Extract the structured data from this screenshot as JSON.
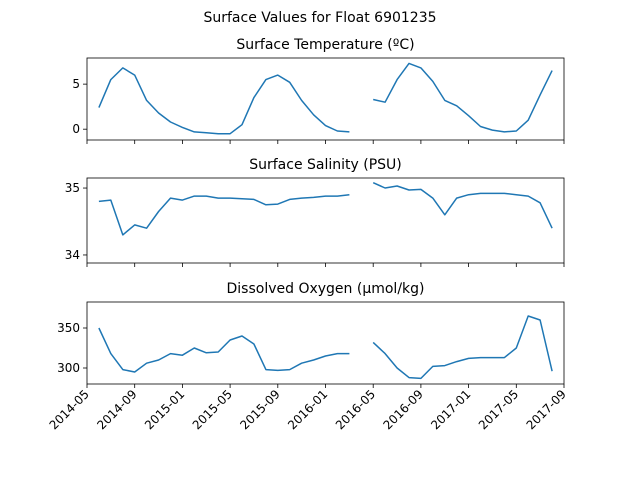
{
  "title": "Surface Values for Float 6901235",
  "chart_data": [
    {
      "type": "line",
      "title": "Surface Temperature (ºC)",
      "x": [
        "2014-06",
        "2014-07",
        "2014-08",
        "2014-09",
        "2014-10",
        "2014-11",
        "2014-12",
        "2015-01",
        "2015-02",
        "2015-03",
        "2015-04",
        "2015-05",
        "2015-06",
        "2015-07",
        "2015-08",
        "2015-09",
        "2015-10",
        "2015-11",
        "2015-12",
        "2016-01",
        "2016-02",
        "2016-03",
        "2016-04",
        "2016-05",
        "2016-06",
        "2016-07",
        "2016-08",
        "2016-09",
        "2016-10",
        "2016-11",
        "2016-12",
        "2017-01",
        "2017-02",
        "2017-03",
        "2017-04",
        "2017-05",
        "2017-06",
        "2017-07",
        "2017-08"
      ],
      "series": [
        {
          "color": "#1f77b4",
          "values": [
            2.4,
            5.5,
            6.8,
            6.0,
            3.2,
            1.8,
            0.8,
            0.2,
            -0.3,
            -0.4,
            -0.5,
            -0.5,
            0.5,
            3.5,
            5.5,
            6.0,
            5.2,
            3.2,
            1.6,
            0.4,
            -0.2,
            -0.3,
            null,
            3.3,
            3.0,
            5.5,
            7.3,
            6.8,
            5.3,
            3.2,
            2.6,
            1.5,
            0.3,
            -0.1,
            -0.3,
            -0.2,
            1.0,
            3.8,
            6.5
          ]
        }
      ],
      "xlim": [
        "2014-05",
        "2017-09"
      ],
      "xticks": [
        "2014-05",
        "2014-09",
        "2015-01",
        "2015-05",
        "2015-09",
        "2016-01",
        "2016-05",
        "2016-09",
        "2017-01",
        "2017-05",
        "2017-09"
      ],
      "ylim": [
        -1.2,
        7.9
      ],
      "yticks": [
        0,
        5
      ]
    },
    {
      "type": "line",
      "title": "Surface Salinity (PSU)",
      "x": [
        "2014-06",
        "2014-07",
        "2014-08",
        "2014-09",
        "2014-10",
        "2014-11",
        "2014-12",
        "2015-01",
        "2015-02",
        "2015-03",
        "2015-04",
        "2015-05",
        "2015-06",
        "2015-07",
        "2015-08",
        "2015-09",
        "2015-10",
        "2015-11",
        "2015-12",
        "2016-01",
        "2016-02",
        "2016-03",
        "2016-04",
        "2016-05",
        "2016-06",
        "2016-07",
        "2016-08",
        "2016-09",
        "2016-10",
        "2016-11",
        "2016-12",
        "2017-01",
        "2017-02",
        "2017-03",
        "2017-04",
        "2017-05",
        "2017-06",
        "2017-07",
        "2017-08"
      ],
      "series": [
        {
          "color": "#1f77b4",
          "values": [
            34.8,
            34.82,
            34.3,
            34.45,
            34.4,
            34.65,
            34.85,
            34.82,
            34.88,
            34.88,
            34.85,
            34.85,
            34.84,
            34.83,
            34.75,
            34.76,
            34.83,
            34.85,
            34.86,
            34.88,
            34.88,
            34.9,
            null,
            35.08,
            35.0,
            35.03,
            34.97,
            34.98,
            34.85,
            34.6,
            34.85,
            34.9,
            34.92,
            34.92,
            34.92,
            34.9,
            34.88,
            34.78,
            34.4
          ]
        }
      ],
      "xlim": [
        "2014-05",
        "2017-09"
      ],
      "xticks": [
        "2014-05",
        "2014-09",
        "2015-01",
        "2015-05",
        "2015-09",
        "2016-01",
        "2016-05",
        "2016-09",
        "2017-01",
        "2017-05",
        "2017-09"
      ],
      "ylim": [
        33.88,
        35.15
      ],
      "yticks": [
        34,
        35
      ]
    },
    {
      "type": "line",
      "title": "Dissolved Oxygen (µmol/kg)",
      "x": [
        "2014-06",
        "2014-07",
        "2014-08",
        "2014-09",
        "2014-10",
        "2014-11",
        "2014-12",
        "2015-01",
        "2015-02",
        "2015-03",
        "2015-04",
        "2015-05",
        "2015-06",
        "2015-07",
        "2015-08",
        "2015-09",
        "2015-10",
        "2015-11",
        "2015-12",
        "2016-01",
        "2016-02",
        "2016-03",
        "2016-04",
        "2016-05",
        "2016-06",
        "2016-07",
        "2016-08",
        "2016-09",
        "2016-10",
        "2016-11",
        "2016-12",
        "2017-01",
        "2017-02",
        "2017-03",
        "2017-04",
        "2017-05",
        "2017-06",
        "2017-07",
        "2017-08"
      ],
      "series": [
        {
          "color": "#1f77b4",
          "values": [
            350,
            318,
            298,
            295,
            306,
            310,
            318,
            316,
            325,
            319,
            320,
            335,
            340,
            330,
            298,
            297,
            298,
            306,
            310,
            315,
            318,
            318,
            null,
            332,
            318,
            300,
            288,
            287,
            302,
            303,
            308,
            312,
            313,
            313,
            313,
            325,
            365,
            360,
            296
          ]
        }
      ],
      "xlim": [
        "2014-05",
        "2017-09"
      ],
      "xticks": [
        "2014-05",
        "2014-09",
        "2015-01",
        "2015-05",
        "2015-09",
        "2016-01",
        "2016-05",
        "2016-09",
        "2017-01",
        "2017-05",
        "2017-09"
      ],
      "show_xtick_labels": true,
      "ylim": [
        280,
        382.5
      ],
      "yticks": [
        300,
        350
      ]
    }
  ]
}
